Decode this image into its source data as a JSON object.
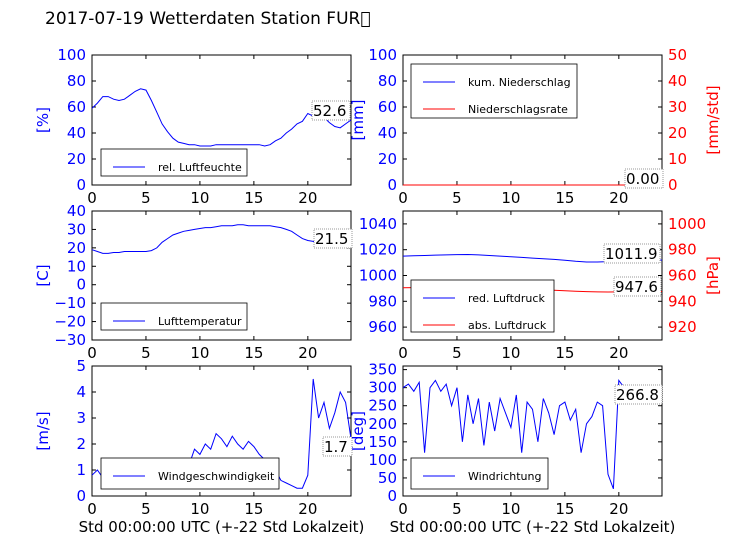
{
  "title": "2017-07-19 Wetterdaten Station FUR\u0000",
  "xlabel": "Std 00:00:00 UTC (+-22 Std Lokalzeit)",
  "colors": {
    "blue": "#0000ff",
    "red": "#ff0000",
    "axis": "#000000"
  },
  "chart_data": [
    {
      "type": "line",
      "ylabel": "[%]",
      "ylim": [
        0,
        100
      ],
      "yticks": [
        "0",
        "20",
        "40",
        "60",
        "80",
        "100"
      ],
      "xlim": [
        0,
        24
      ],
      "xticks": [
        "0",
        "5",
        "10",
        "15",
        "20"
      ],
      "series": [
        {
          "name": "rel. Luftfeuchte",
          "color": "#0000ff",
          "x": [
            0,
            0.5,
            1,
            1.5,
            2,
            2.5,
            3,
            3.5,
            4,
            4.5,
            5,
            5.5,
            6,
            6.5,
            7,
            7.5,
            8,
            8.5,
            9,
            9.5,
            10,
            10.5,
            11,
            11.5,
            12,
            12.5,
            13,
            13.5,
            14,
            14.5,
            15,
            15.5,
            16,
            16.5,
            17,
            17.5,
            18,
            18.5,
            19,
            19.5,
            20,
            20.5,
            21,
            21.5,
            22,
            22.5,
            23,
            23.5,
            24
          ],
          "values": [
            59,
            63,
            68,
            68,
            66,
            65,
            66,
            69,
            72,
            74,
            73,
            65,
            56,
            47,
            41,
            36,
            33,
            32,
            31,
            31,
            30,
            30,
            30,
            31,
            31,
            31,
            31,
            31,
            31,
            31,
            31,
            31,
            30,
            31,
            34,
            36,
            40,
            43,
            47,
            49,
            55,
            53,
            56,
            52,
            48,
            45,
            44,
            47,
            50
          ]
        }
      ],
      "annotation": "52.6",
      "legend_position": "lower-left"
    },
    {
      "type": "line",
      "ylabel": "[mm]",
      "ylabel_right": "[mm/std]",
      "ylim": [
        0,
        100
      ],
      "yticks": [
        "0",
        "20",
        "40",
        "60",
        "80",
        "100"
      ],
      "ylim_right": [
        0,
        50
      ],
      "yticks_right": [
        "0",
        "10",
        "20",
        "30",
        "40",
        "50"
      ],
      "xlim": [
        0,
        24
      ],
      "xticks": [
        "0",
        "5",
        "10",
        "15",
        "20"
      ],
      "series": [
        {
          "name": "kum. Niederschlag",
          "color": "#0000ff",
          "x": [
            0,
            24
          ],
          "values": [
            0,
            0
          ]
        },
        {
          "name": "Niederschlagsrate",
          "color": "#ff0000",
          "x": [
            0,
            24
          ],
          "values": [
            0,
            0
          ]
        }
      ],
      "annotation": "0.00",
      "legend_position": "upper-left"
    },
    {
      "type": "line",
      "ylabel": "[C]",
      "ylim": [
        -30,
        40
      ],
      "yticks": [
        "−30",
        "−20",
        "−10",
        "0",
        "10",
        "20",
        "30",
        "40"
      ],
      "xlim": [
        0,
        24
      ],
      "xticks": [
        "0",
        "5",
        "10",
        "15",
        "20"
      ],
      "series": [
        {
          "name": "Lufttemperatur",
          "color": "#0000ff",
          "x": [
            0,
            0.5,
            1,
            1.5,
            2,
            2.5,
            3,
            3.5,
            4,
            4.5,
            5,
            5.5,
            6,
            6.5,
            7,
            7.5,
            8,
            8.5,
            9,
            9.5,
            10,
            10.5,
            11,
            11.5,
            12,
            12.5,
            13,
            13.5,
            14,
            14.5,
            15,
            15.5,
            16,
            16.5,
            17,
            17.5,
            18,
            18.5,
            19,
            19.5,
            20,
            20.5,
            21,
            21.5,
            22,
            22.5,
            23,
            23.5,
            24
          ],
          "values": [
            19,
            18,
            17,
            17,
            17.5,
            17.5,
            18,
            18,
            18,
            18,
            18,
            18.5,
            20,
            23,
            25,
            27,
            28,
            29,
            29.5,
            30,
            30.5,
            31,
            31,
            31.5,
            32,
            32,
            32,
            32.5,
            32.5,
            32,
            32,
            32,
            32,
            32,
            31.5,
            31,
            30,
            29,
            27,
            25,
            24,
            23.5,
            23,
            22.5,
            22,
            22,
            21.5,
            21.5,
            21.5
          ]
        }
      ],
      "annotation": "21.5",
      "legend_position": "lower-left"
    },
    {
      "type": "line",
      "ylabel_right": "[hPa]",
      "ylim": [
        950,
        1050
      ],
      "yticks": [
        "960",
        "980",
        "1000",
        "1020",
        "1040"
      ],
      "ylim_right": [
        910,
        1010
      ],
      "yticks_right": [
        "920",
        "940",
        "960",
        "980",
        "1000"
      ],
      "xlim": [
        0,
        24
      ],
      "xticks": [
        "0",
        "5",
        "10",
        "15",
        "20"
      ],
      "series": [
        {
          "name": "red. Luftdruck",
          "color": "#0000ff",
          "x": [
            0,
            1,
            2,
            3,
            4,
            5,
            6,
            7,
            8,
            9,
            10,
            11,
            12,
            13,
            14,
            15,
            16,
            17,
            18,
            19,
            20,
            21,
            22,
            23,
            24
          ],
          "values": [
            1015,
            1015.3,
            1015.5,
            1015.8,
            1016,
            1016.2,
            1016.3,
            1016,
            1015.5,
            1015,
            1014.5,
            1014,
            1013.5,
            1013,
            1012.5,
            1011.8,
            1011,
            1010.5,
            1010.5,
            1010.8,
            1011,
            1011.5,
            1011.8,
            1011.9,
            1011.9
          ]
        },
        {
          "name": "abs. Luftdruck",
          "color": "#ff0000",
          "x": [
            0,
            1,
            2,
            3,
            4,
            5,
            6,
            7,
            8,
            9,
            10,
            11,
            12,
            13,
            14,
            15,
            16,
            17,
            18,
            19,
            20,
            21,
            22,
            23,
            24
          ],
          "values": [
            950.5,
            950.6,
            950.8,
            951,
            951.2,
            951.4,
            951.6,
            951.5,
            951.2,
            950.8,
            950.5,
            950,
            949.5,
            949,
            948.6,
            948.2,
            947.8,
            947.5,
            947.3,
            947.2,
            947.3,
            947.4,
            947.5,
            947.6,
            947.6
          ]
        }
      ],
      "annotation_blue": "1011.9",
      "annotation_red": "947.6",
      "legend_position": "lower-left"
    },
    {
      "type": "line",
      "ylabel": "[m/s]",
      "ylim": [
        0,
        5
      ],
      "yticks": [
        "0",
        "1",
        "2",
        "3",
        "4",
        "5"
      ],
      "xlim": [
        0,
        24
      ],
      "xticks": [
        "0",
        "5",
        "10",
        "15",
        "20"
      ],
      "series": [
        {
          "name": "Windgeschwindigkeit",
          "color": "#0000ff",
          "x": [
            0,
            0.5,
            1,
            1.5,
            2,
            2.5,
            3,
            3.5,
            4,
            4.5,
            5,
            5.5,
            6,
            6.5,
            7,
            7.5,
            8,
            8.5,
            9,
            9.5,
            10,
            10.5,
            11,
            11.5,
            12,
            12.5,
            13,
            13.5,
            14,
            14.5,
            15,
            15.5,
            16,
            16.5,
            17,
            17.5,
            18,
            18.5,
            19,
            19.5,
            20,
            20.5,
            21,
            21.5,
            22,
            22.5,
            23,
            23.5,
            24
          ],
          "values": [
            0.8,
            1.0,
            0.7,
            0.5,
            0.6,
            0.9,
            0.7,
            0.5,
            0.4,
            0.3,
            0.4,
            0.5,
            0.6,
            0.8,
            0.9,
            0.8,
            1.0,
            1.4,
            1.2,
            1.8,
            1.6,
            2.0,
            1.8,
            2.4,
            2.2,
            1.9,
            2.3,
            2.0,
            1.8,
            2.1,
            1.9,
            1.6,
            1.4,
            1.3,
            1.0,
            0.6,
            0.5,
            0.4,
            0.3,
            0.3,
            0.8,
            4.5,
            3.0,
            3.6,
            2.6,
            3.2,
            4.0,
            3.6,
            2.2
          ]
        }
      ],
      "annotation": "1.7",
      "legend_position": "lower-center"
    },
    {
      "type": "line",
      "ylabel": "[deg]",
      "ylim": [
        0,
        360
      ],
      "yticks": [
        "0",
        "50",
        "100",
        "150",
        "200",
        "250",
        "300",
        "350"
      ],
      "xlim": [
        0,
        24
      ],
      "xticks": [
        "0",
        "5",
        "10",
        "15",
        "20"
      ],
      "series": [
        {
          "name": "Windrichtung",
          "color": "#0000ff",
          "x": [
            0,
            0.5,
            1,
            1.5,
            2,
            2.5,
            3,
            3.5,
            4,
            4.5,
            5,
            5.5,
            6,
            6.5,
            7,
            7.5,
            8,
            8.5,
            9,
            9.5,
            10,
            10.5,
            11,
            11.5,
            12,
            12.5,
            13,
            13.5,
            14,
            14.5,
            15,
            15.5,
            16,
            16.5,
            17,
            17.5,
            18,
            18.5,
            19,
            19.5,
            20,
            20.5,
            21,
            21.5,
            22,
            22.5,
            23,
            23.5,
            24
          ],
          "values": [
            300,
            310,
            290,
            315,
            120,
            300,
            320,
            290,
            310,
            250,
            300,
            150,
            280,
            200,
            270,
            140,
            260,
            180,
            270,
            230,
            190,
            280,
            120,
            260,
            240,
            150,
            270,
            230,
            170,
            250,
            260,
            210,
            240,
            120,
            200,
            220,
            260,
            250,
            60,
            20,
            320,
            300,
            280,
            270,
            280,
            270,
            275,
            265,
            262
          ]
        }
      ],
      "annotation": "266.8",
      "legend_position": "lower-left"
    }
  ]
}
